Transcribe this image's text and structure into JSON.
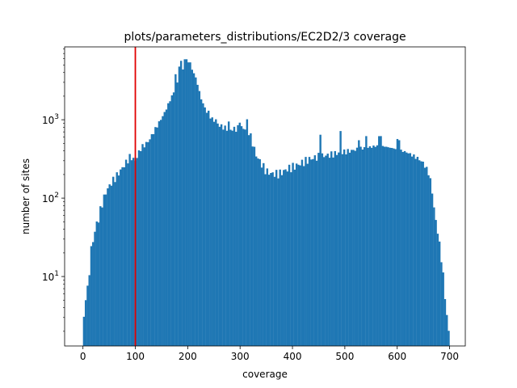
{
  "chart_data": {
    "type": "bar",
    "subtype": "histogram",
    "title": "plots/parameters_distributions/EC2D2/3 coverage",
    "xlabel": "coverage",
    "ylabel": "number of sites",
    "xlim": [
      -35,
      730
    ],
    "ylim": [
      1.3,
      8500
    ],
    "yscale": "log",
    "bar_color": "#1f77b4",
    "bin_width": 3.5,
    "x_ticks": [
      0,
      100,
      200,
      300,
      400,
      500,
      600,
      700
    ],
    "x_tick_labels": [
      "0",
      "100",
      "200",
      "300",
      "400",
      "500",
      "600",
      "700"
    ],
    "y_ticks": [
      10,
      100,
      1000
    ],
    "y_tick_labels": [
      "10^1",
      "10^2",
      "10^3"
    ],
    "threshold_line": {
      "x": 100,
      "color": "#e00000"
    },
    "anchors": [
      [
        0,
        2
      ],
      [
        7,
        8
      ],
      [
        10,
        6
      ],
      [
        14,
        20
      ],
      [
        18,
        26
      ],
      [
        25,
        45
      ],
      [
        30,
        55
      ],
      [
        35,
        80
      ],
      [
        45,
        125
      ],
      [
        55,
        160
      ],
      [
        65,
        195
      ],
      [
        80,
        270
      ],
      [
        90,
        340
      ],
      [
        100,
        300
      ],
      [
        110,
        430
      ],
      [
        125,
        530
      ],
      [
        140,
        800
      ],
      [
        155,
        1200
      ],
      [
        165,
        1700
      ],
      [
        175,
        2400
      ],
      [
        185,
        3600
      ],
      [
        190,
        4400
      ],
      [
        200,
        4400
      ],
      [
        210,
        4300
      ],
      [
        218,
        3000
      ],
      [
        225,
        1900
      ],
      [
        235,
        1300
      ],
      [
        245,
        1050
      ],
      [
        260,
        850
      ],
      [
        280,
        740
      ],
      [
        300,
        790
      ],
      [
        315,
        760
      ],
      [
        322,
        560
      ],
      [
        330,
        360
      ],
      [
        340,
        280
      ],
      [
        350,
        220
      ],
      [
        360,
        205
      ],
      [
        375,
        205
      ],
      [
        390,
        235
      ],
      [
        410,
        265
      ],
      [
        430,
        310
      ],
      [
        450,
        340
      ],
      [
        470,
        355
      ],
      [
        490,
        380
      ],
      [
        510,
        400
      ],
      [
        530,
        430
      ],
      [
        550,
        450
      ],
      [
        565,
        470
      ],
      [
        580,
        450
      ],
      [
        600,
        420
      ],
      [
        620,
        380
      ],
      [
        640,
        320
      ],
      [
        650,
        280
      ],
      [
        660,
        210
      ],
      [
        665,
        150
      ],
      [
        672,
        60
      ],
      [
        678,
        35
      ],
      [
        683,
        20
      ],
      [
        688,
        10
      ],
      [
        693,
        4
      ],
      [
        698,
        2
      ]
    ],
    "peaks": [
      [
        178,
        3800
      ],
      [
        183,
        4800
      ],
      [
        188,
        5600
      ],
      [
        193,
        5900
      ],
      [
        198,
        5900
      ],
      [
        203,
        5400
      ],
      [
        239,
        1250
      ],
      [
        253,
        1000
      ],
      [
        278,
        920
      ],
      [
        298,
        1000
      ],
      [
        312,
        950
      ],
      [
        452,
        720
      ],
      [
        492,
        700
      ],
      [
        527,
        580
      ],
      [
        542,
        620
      ],
      [
        567,
        620
      ],
      [
        602,
        560
      ]
    ]
  }
}
